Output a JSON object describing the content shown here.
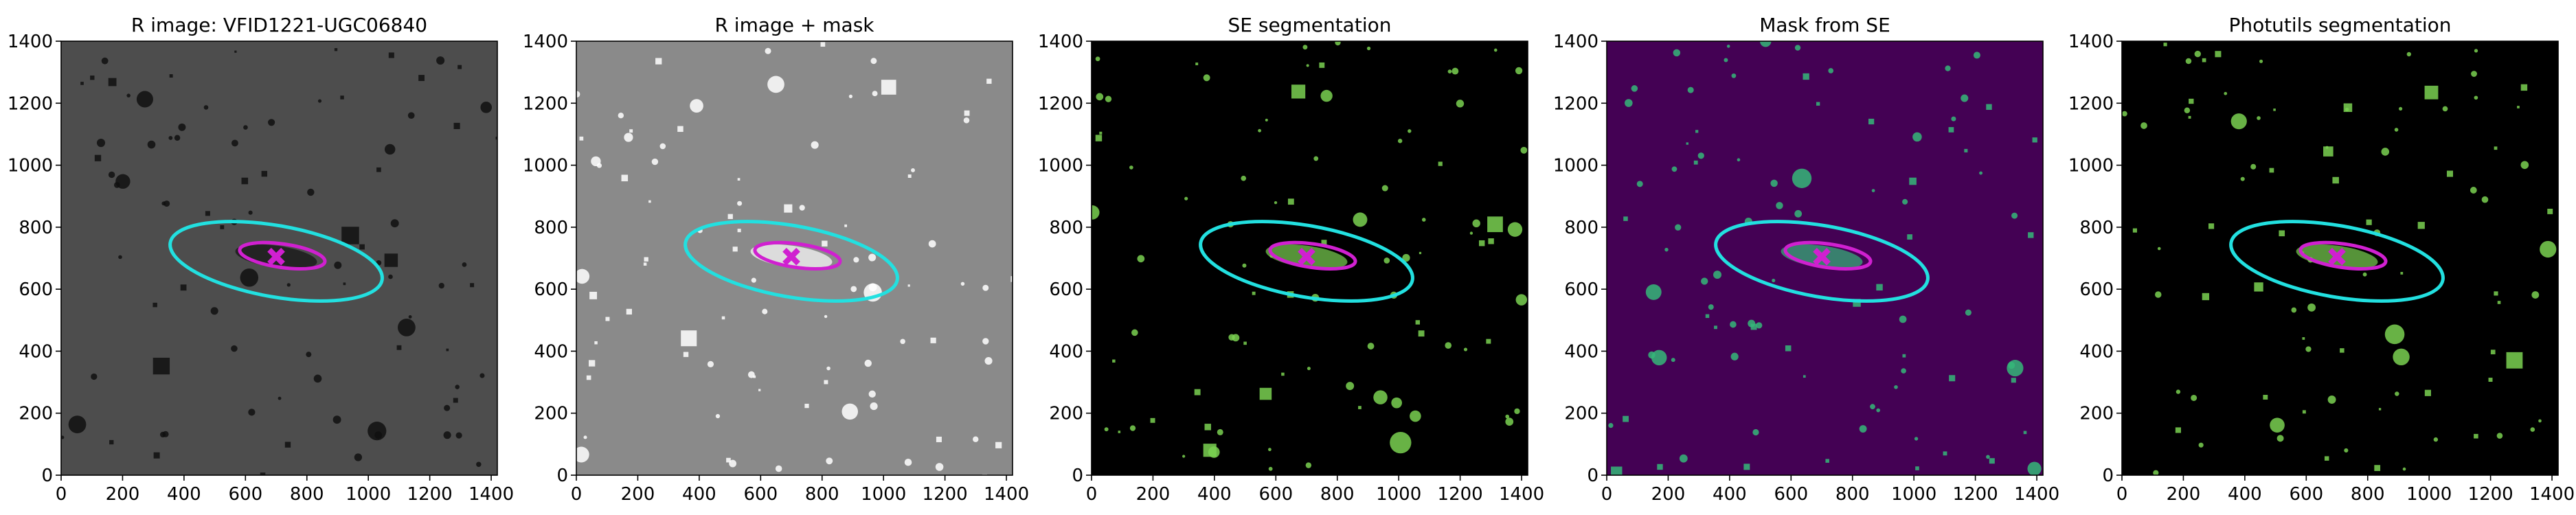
{
  "chart_data": [
    {
      "type": "image",
      "title": "R image: VFID1221-UGC06840",
      "background": "#4d4d4d",
      "speckle": "#111111",
      "xlim": [
        0,
        1420
      ],
      "ylim": [
        0,
        1400
      ],
      "xticks": [
        0,
        200,
        400,
        600,
        800,
        1000,
        1200,
        1400
      ],
      "yticks": [
        0,
        200,
        400,
        600,
        800,
        1000,
        1200,
        1400
      ],
      "ellipses": [
        {
          "x": 700,
          "y": 690,
          "a": 350,
          "b": 115,
          "angle": -10,
          "color": "#22e0e0"
        },
        {
          "x": 720,
          "y": 708,
          "a": 140,
          "b": 38,
          "angle": -8,
          "color": "#d020d0"
        }
      ],
      "marker": {
        "x": 700,
        "y": 705,
        "color": "#d020d0"
      }
    },
    {
      "type": "image",
      "title": "R image + mask",
      "background": "#8a8a8a",
      "speckle": "#ffffff",
      "xlim": [
        0,
        1420
      ],
      "ylim": [
        0,
        1400
      ],
      "xticks": [
        0,
        200,
        400,
        600,
        800,
        1000,
        1200,
        1400
      ],
      "yticks": [
        0,
        200,
        400,
        600,
        800,
        1000,
        1200,
        1400
      ],
      "ellipses": [
        {
          "x": 700,
          "y": 690,
          "a": 350,
          "b": 115,
          "angle": -10,
          "color": "#22e0e0"
        },
        {
          "x": 720,
          "y": 708,
          "a": 140,
          "b": 38,
          "angle": -8,
          "color": "#d020d0"
        }
      ],
      "marker": {
        "x": 700,
        "y": 705,
        "color": "#d020d0"
      }
    },
    {
      "type": "image",
      "title": "SE segmentation",
      "background": "#000000",
      "speckle": "#7ad151",
      "xlim": [
        0,
        1420
      ],
      "ylim": [
        0,
        1400
      ],
      "xticks": [
        0,
        200,
        400,
        600,
        800,
        1000,
        1200,
        1400
      ],
      "yticks": [
        0,
        200,
        400,
        600,
        800,
        1000,
        1200,
        1400
      ],
      "ellipses": [
        {
          "x": 700,
          "y": 690,
          "a": 350,
          "b": 115,
          "angle": -10,
          "color": "#22e0e0"
        },
        {
          "x": 720,
          "y": 708,
          "a": 140,
          "b": 38,
          "angle": -8,
          "color": "#d020d0"
        }
      ],
      "marker": {
        "x": 700,
        "y": 705,
        "color": "#d020d0"
      }
    },
    {
      "type": "image",
      "title": "Mask from SE",
      "background": "#440154",
      "speckle": "#35b779",
      "xlim": [
        0,
        1420
      ],
      "ylim": [
        0,
        1400
      ],
      "xticks": [
        0,
        200,
        400,
        600,
        800,
        1000,
        1200,
        1400
      ],
      "yticks": [
        0,
        200,
        400,
        600,
        800,
        1000,
        1200,
        1400
      ],
      "ellipses": [
        {
          "x": 700,
          "y": 690,
          "a": 350,
          "b": 115,
          "angle": -10,
          "color": "#22e0e0"
        },
        {
          "x": 720,
          "y": 708,
          "a": 140,
          "b": 38,
          "angle": -8,
          "color": "#d020d0"
        }
      ],
      "marker": {
        "x": 700,
        "y": 705,
        "color": "#d020d0"
      }
    },
    {
      "type": "image",
      "title": "Photutils segmentation",
      "background": "#000000",
      "speckle": "#7ad151",
      "xlim": [
        0,
        1420
      ],
      "ylim": [
        0,
        1400
      ],
      "xticks": [
        0,
        200,
        400,
        600,
        800,
        1000,
        1200,
        1400
      ],
      "yticks": [
        0,
        200,
        400,
        600,
        800,
        1000,
        1200,
        1400
      ],
      "ellipses": [
        {
          "x": 700,
          "y": 690,
          "a": 350,
          "b": 115,
          "angle": -10,
          "color": "#22e0e0"
        },
        {
          "x": 720,
          "y": 708,
          "a": 140,
          "b": 38,
          "angle": -8,
          "color": "#d020d0"
        }
      ],
      "marker": {
        "x": 700,
        "y": 705,
        "color": "#d020d0"
      }
    }
  ]
}
